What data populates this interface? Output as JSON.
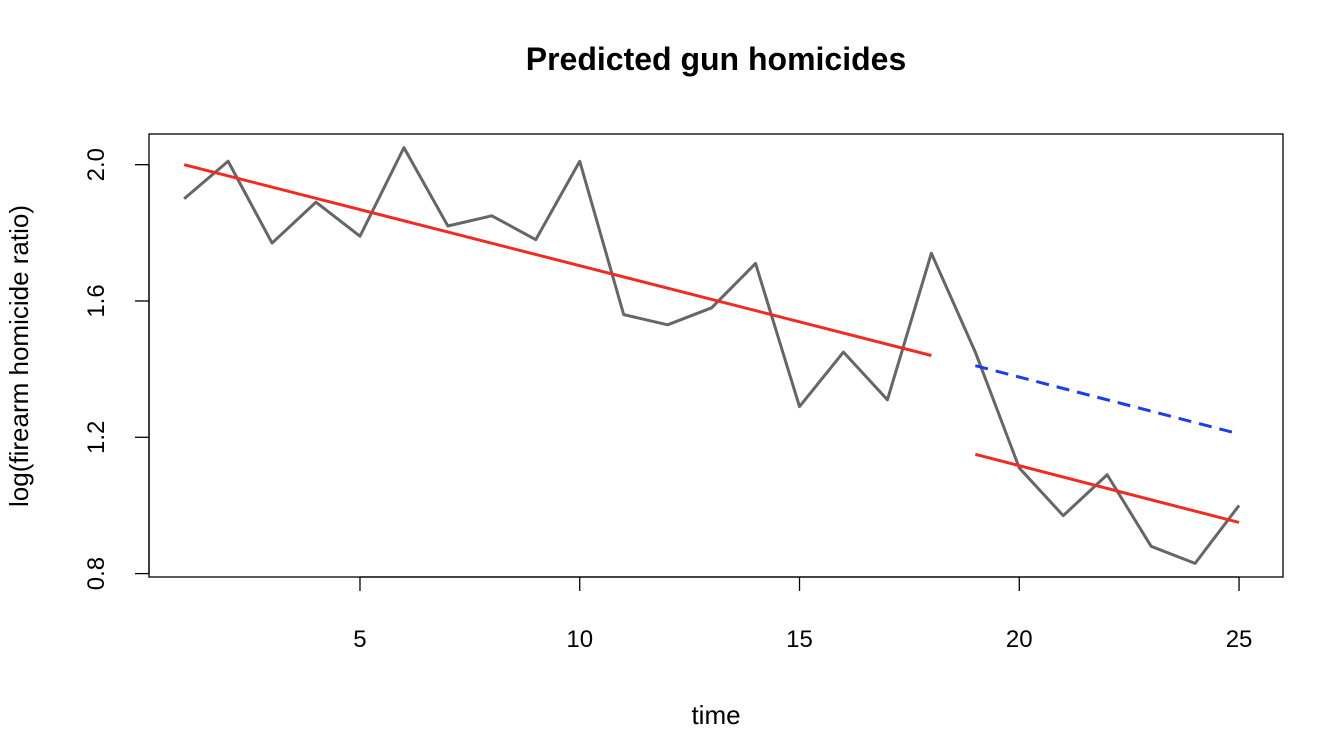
{
  "chart_data": {
    "type": "line",
    "title": "Predicted gun homicides",
    "xlabel": "time",
    "ylabel": "log(firearm homicide ratio)",
    "xlim": [
      0.2,
      26
    ],
    "ylim": [
      0.79,
      2.09
    ],
    "x_ticks": [
      5,
      10,
      15,
      20,
      25
    ],
    "y_ticks": [
      0.8,
      1.2,
      1.6,
      2.0
    ],
    "grid": false,
    "legend": "none",
    "series": [
      {
        "style": "solid",
        "color": "#666666",
        "x": [
          1,
          2,
          3,
          4,
          5,
          6,
          7,
          8,
          9,
          10,
          11,
          12,
          13,
          14,
          15,
          16,
          17,
          18,
          19,
          20,
          21,
          22,
          23,
          24,
          25
        ],
        "y": [
          1.9,
          2.01,
          1.77,
          1.89,
          1.79,
          2.05,
          1.82,
          1.85,
          1.78,
          2.01,
          1.56,
          1.53,
          1.58,
          1.71,
          1.29,
          1.45,
          1.31,
          1.74,
          1.45,
          1.11,
          0.97,
          1.09,
          0.88,
          0.83,
          1.0
        ]
      },
      {
        "style": "solid",
        "color": "#ee2b24",
        "x": [
          1,
          18
        ],
        "y": [
          2.0,
          1.44
        ]
      },
      {
        "style": "solid",
        "color": "#ee2b24",
        "x": [
          19,
          25
        ],
        "y": [
          1.15,
          0.95
        ]
      },
      {
        "style": "dashed",
        "color": "#1f3fe6",
        "x": [
          19,
          25
        ],
        "y": [
          1.41,
          1.21
        ]
      }
    ]
  }
}
